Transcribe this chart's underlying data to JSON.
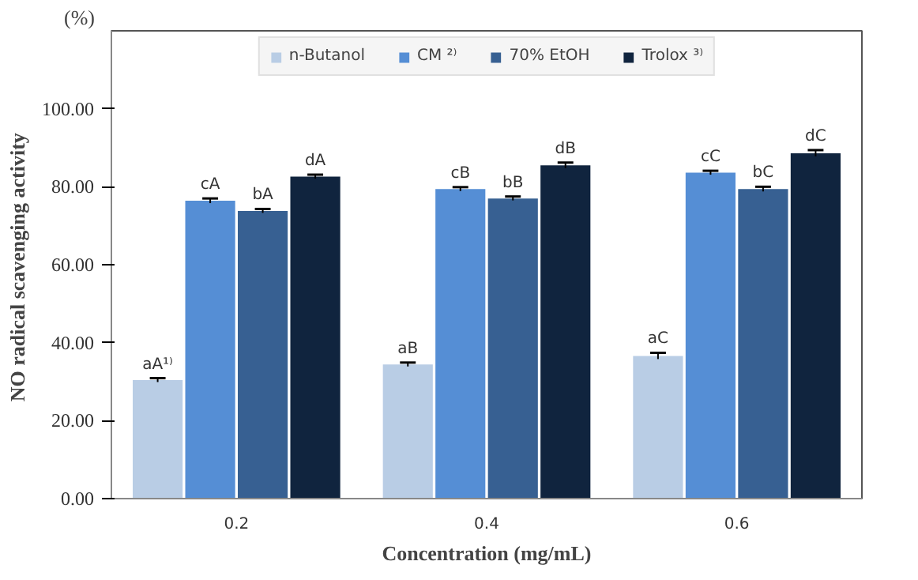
{
  "chart_data": {
    "type": "bar",
    "xlabel": "Concentration (mg/mL)",
    "ylabel": "NO radical  scavenging activity",
    "annotations": [
      "(%)"
    ],
    "categories": [
      "0.2",
      "0.4",
      "0.6"
    ],
    "ylim": [
      0,
      120
    ],
    "yticks": [
      {
        "value": 0,
        "label": "0.00"
      },
      {
        "value": 20,
        "label": "20.00"
      },
      {
        "value": 40,
        "label": "40.00"
      },
      {
        "value": 60,
        "label": "60.00"
      },
      {
        "value": 80,
        "label": "80.00"
      },
      {
        "value": 100,
        "label": "100.00"
      }
    ],
    "legend": "top",
    "grid": false,
    "series": [
      {
        "name": "n-Butanol",
        "color": "#b9cde5",
        "values": [
          30.4,
          34.4,
          36.6
        ],
        "errors": [
          0.5,
          0.5,
          0.8
        ],
        "value_labels": [
          "aA¹⁾",
          "aB",
          "aC"
        ]
      },
      {
        "name": "CM ²⁾",
        "color": "#558ed5",
        "values": [
          76.4,
          79.4,
          83.6
        ],
        "errors": [
          0.6,
          0.5,
          0.5
        ],
        "value_labels": [
          "cA",
          "cB",
          "cC"
        ]
      },
      {
        "name": "70% EtOH",
        "color": "#376092",
        "values": [
          73.8,
          77.0,
          79.4
        ],
        "errors": [
          0.5,
          0.5,
          0.6
        ],
        "value_labels": [
          "bA",
          "bB",
          "bC"
        ]
      },
      {
        "name": "Trolox ³⁾",
        "color": "#10243e",
        "values": [
          82.6,
          85.5,
          88.6
        ],
        "errors": [
          0.5,
          0.7,
          0.8
        ],
        "value_labels": [
          "dA",
          "dB",
          "dC"
        ]
      }
    ]
  }
}
